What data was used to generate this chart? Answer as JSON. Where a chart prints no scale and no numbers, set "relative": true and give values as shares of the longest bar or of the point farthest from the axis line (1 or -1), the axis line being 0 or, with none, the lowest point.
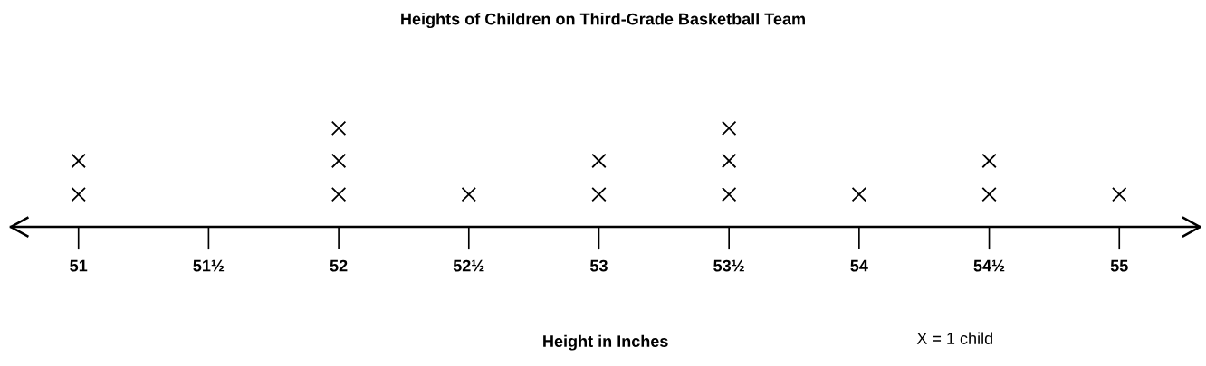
{
  "chart_data": {
    "type": "scatter",
    "title": "Heights of Children on Third-Grade Basketball Team",
    "xlabel": "Height in Inches",
    "annotations": [
      "X = 1 child"
    ],
    "relative": true,
    "marker": "cross",
    "x": [
      51,
      51,
      52,
      52,
      52,
      52.5,
      53,
      53,
      53.5,
      53.5,
      53.5,
      54,
      54.5,
      54.5,
      55
    ],
    "series": [
      {
        "color": "#000000",
        "values": [
          0.33,
          0.67,
          0.33,
          0.67,
          1,
          0.33,
          0.33,
          0.67,
          0.33,
          0.67,
          1,
          0.33,
          0.33,
          0.67,
          0.33
        ]
      }
    ],
    "xlim": [
      50.74,
      55.31
    ],
    "xticks": [
      51,
      {
        "value": 51.5,
        "label": "51½"
      },
      52,
      {
        "value": 52.5,
        "label": "52½"
      },
      53,
      {
        "value": 53.5,
        "label": "53½"
      },
      54,
      {
        "value": 54.5,
        "label": "54½"
      },
      55
    ]
  }
}
